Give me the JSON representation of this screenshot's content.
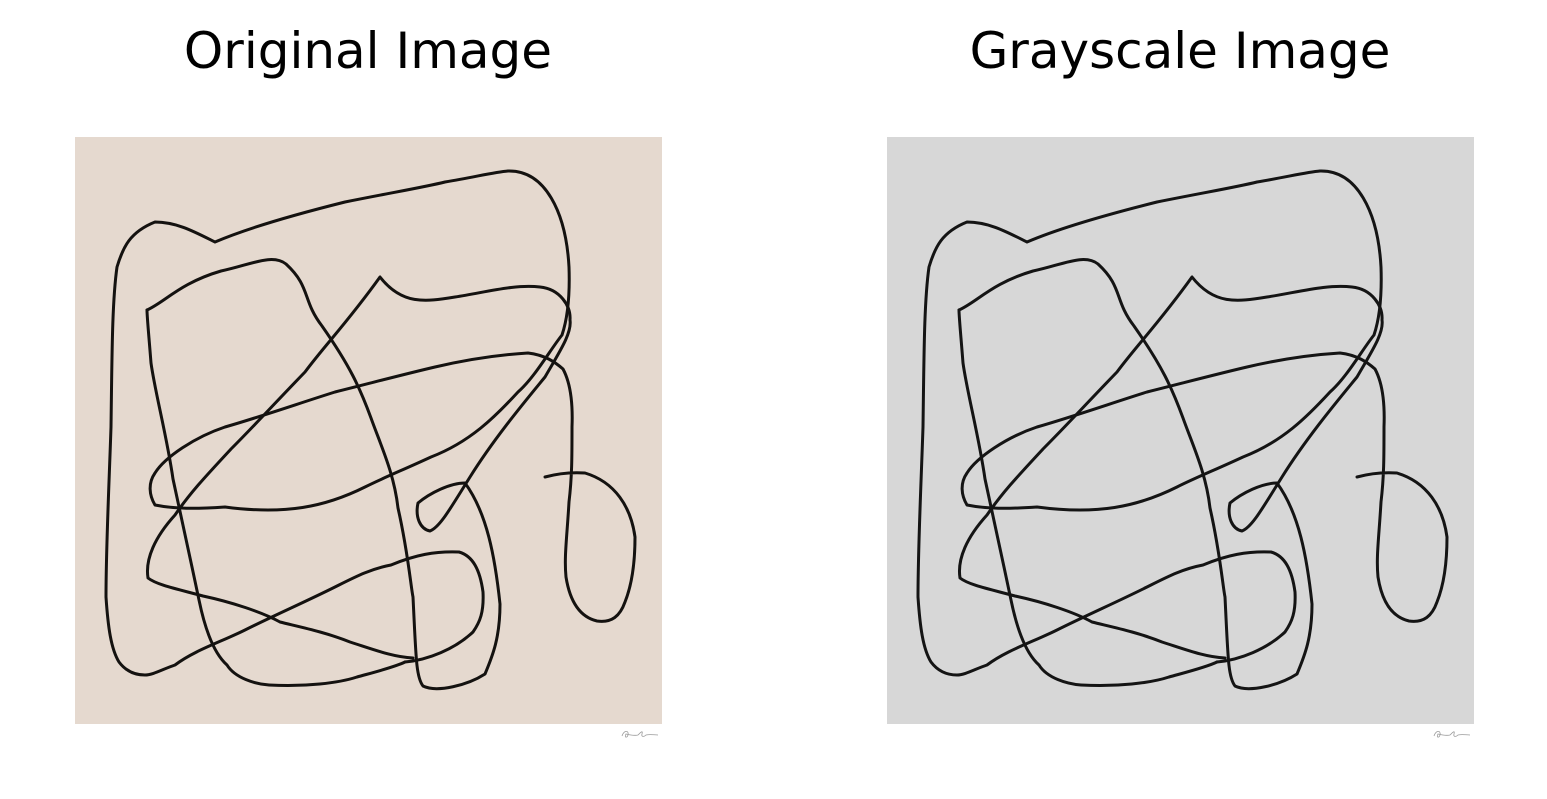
{
  "figure": {
    "panels": [
      {
        "title": "Original Image",
        "background_color": "#e5d9cf",
        "line_color": "#141210"
      },
      {
        "title": "Grayscale Image",
        "background_color": "#d7d7d7",
        "line_color": "#141414"
      }
    ],
    "artwork": {
      "subject": "continuous black line doodle",
      "signature": "small handwritten signature, bottom-right"
    }
  }
}
